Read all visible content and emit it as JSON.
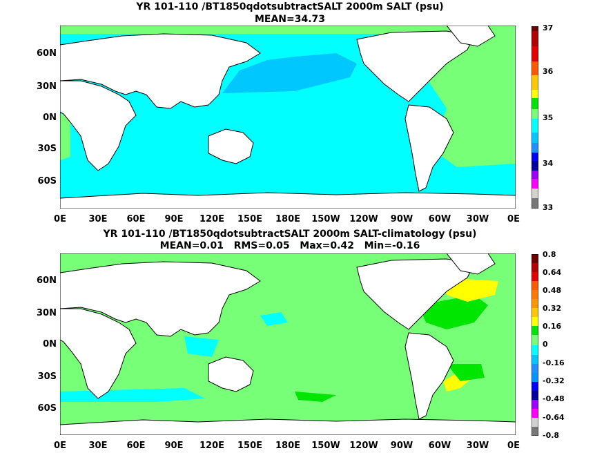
{
  "panels": [
    {
      "title": "YR 101-110 /BT1850qdotsubtractSALT 2000m SALT (psu)",
      "subtitle": "MEAN=34.73",
      "colorbar_labels": [
        "37",
        "36",
        "35",
        "34",
        "33"
      ]
    },
    {
      "title": "YR 101-110 /BT1850qdotsubtractSALT 2000m SALT-climatology (psu)",
      "subtitle": "MEAN=0.01   RMS=0.05   Max=0.42   Min=-0.16",
      "colorbar_labels": [
        "0.8",
        "0.64",
        "0.48",
        "0.32",
        "0.16",
        "0",
        "-0.16",
        "-0.32",
        "-0.48",
        "-0.64",
        "-0.8"
      ]
    }
  ],
  "lat_labels": [
    "60N",
    "30N",
    "0N",
    "30S",
    "60S"
  ],
  "lon_labels": [
    "0E",
    "30E",
    "60E",
    "90E",
    "120E",
    "150E",
    "180E",
    "150W",
    "120W",
    "90W",
    "60W",
    "30W",
    "0E"
  ],
  "colors": {
    "panel1_scale": [
      "#6e0000",
      "#b40000",
      "#e60000",
      "#ff5a00",
      "#ff9600",
      "#ffc800",
      "#ffff00",
      "#00e600",
      "#78ff78",
      "#00ffff",
      "#00c8ff",
      "#1e90ff",
      "#0000ff",
      "#0000a0",
      "#a000ff",
      "#ff00ff",
      "#d2d2d2",
      "#787878"
    ],
    "panel2_scale": [
      "#6e0000",
      "#b40000",
      "#e60000",
      "#ff5a00",
      "#ff9600",
      "#ffc800",
      "#ffff00",
      "#00e600",
      "#78ff78",
      "#00ffff",
      "#00c8ff",
      "#1e90ff",
      "#0000ff",
      "#0000a0",
      "#a000ff",
      "#ff00ff",
      "#d2d2d2",
      "#787878"
    ]
  }
}
